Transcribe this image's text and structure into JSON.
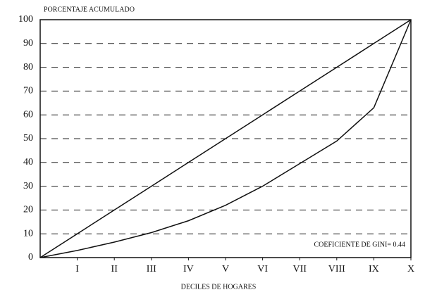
{
  "chart_data": {
    "type": "line",
    "title": "PORCENTAJE ACUMULADO",
    "x_label": "DECILES DE HOGARES",
    "annotation": "COEFICIENTE DE GINI= 0.44",
    "x": [
      0,
      1,
      2,
      3,
      4,
      5,
      6,
      7,
      8,
      9,
      10
    ],
    "series": [
      {
        "color": "#111111",
        "values": [
          0,
          10,
          20,
          30,
          40,
          50,
          60,
          70,
          80,
          90,
          100
        ]
      },
      {
        "color": "#111111",
        "values": [
          0,
          3,
          6.5,
          10.5,
          15.5,
          22,
          30,
          39.5,
          49,
          63,
          100
        ]
      }
    ],
    "xlim": [
      0,
      10
    ],
    "xticks": [
      {
        "value": 1,
        "label": "I"
      },
      {
        "value": 2,
        "label": "II"
      },
      {
        "value": 3,
        "label": "III"
      },
      {
        "value": 4,
        "label": "IV"
      },
      {
        "value": 5,
        "label": "V"
      },
      {
        "value": 6,
        "label": "VI"
      },
      {
        "value": 7,
        "label": "VII"
      },
      {
        "value": 8,
        "label": "VIII"
      },
      {
        "value": 9,
        "label": "IX"
      },
      {
        "value": 10,
        "label": "X"
      }
    ],
    "ylim": [
      0,
      100
    ],
    "yticks": [
      0,
      10,
      20,
      30,
      40,
      50,
      60,
      70,
      80,
      90,
      100
    ],
    "grid": true
  }
}
